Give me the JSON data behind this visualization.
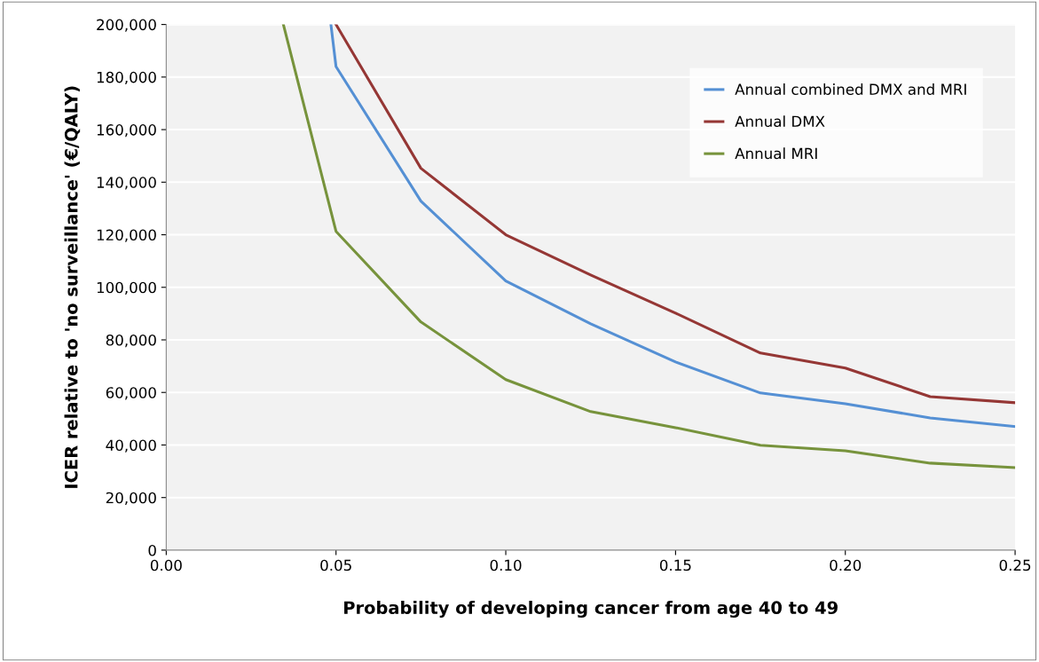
{
  "chart_data": {
    "type": "line",
    "xlabel": "Probability of developing cancer from age 40 to 49",
    "ylabel": "ICER relative to 'no surveillance' (€/QALY)",
    "series": [
      {
        "name": "Annual combined DMX and MRI",
        "color": "#5590d4",
        "x": [
          0.0485,
          0.05,
          0.075,
          0.1,
          0.125,
          0.15,
          0.175,
          0.2,
          0.225,
          0.25
        ],
        "values": [
          200000,
          184000,
          132800,
          102400,
          86100,
          71600,
          59800,
          55700,
          50300,
          47000
        ]
      },
      {
        "name": "Annual DMX",
        "color": "#953735",
        "x": [
          0.05,
          0.075,
          0.1,
          0.125,
          0.15,
          0.175,
          0.2,
          0.225,
          0.25
        ],
        "values": [
          200000,
          145300,
          120000,
          104700,
          90200,
          75000,
          69300,
          58400,
          56100
        ]
      },
      {
        "name": "Annual MRI",
        "color": "#77933c",
        "x": [
          0.0345,
          0.05,
          0.075,
          0.1,
          0.125,
          0.15,
          0.175,
          0.2,
          0.225,
          0.25
        ],
        "values": [
          200000,
          121300,
          86800,
          64900,
          52700,
          46600,
          39900,
          37800,
          33100,
          31400
        ]
      }
    ],
    "xlim": [
      0,
      0.25
    ],
    "xticks": [
      {
        "value": 0,
        "label": "0.00"
      },
      {
        "value": 0.05,
        "label": "0.05"
      },
      {
        "value": 0.1,
        "label": "0.10"
      },
      {
        "value": 0.15,
        "label": "0.15"
      },
      {
        "value": 0.2,
        "label": "0.20"
      },
      {
        "value": 0.25,
        "label": "0.25"
      }
    ],
    "ylim": [
      0,
      200000
    ],
    "yticks": [
      0,
      {
        "value": 20000,
        "label": "20,000"
      },
      {
        "value": 40000,
        "label": "40,000"
      },
      {
        "value": 60000,
        "label": "60,000"
      },
      {
        "value": 80000,
        "label": "80,000"
      },
      {
        "value": 100000,
        "label": "100,000"
      },
      {
        "value": 120000,
        "label": "120,000"
      },
      {
        "value": 140000,
        "label": "140,000"
      },
      {
        "value": 160000,
        "label": "160,000"
      },
      {
        "value": 180000,
        "label": "180,000"
      },
      {
        "value": 200000,
        "label": "200,000"
      }
    ],
    "grid": "y",
    "legend": "top right",
    "marker": "none",
    "line_style": "solid"
  }
}
